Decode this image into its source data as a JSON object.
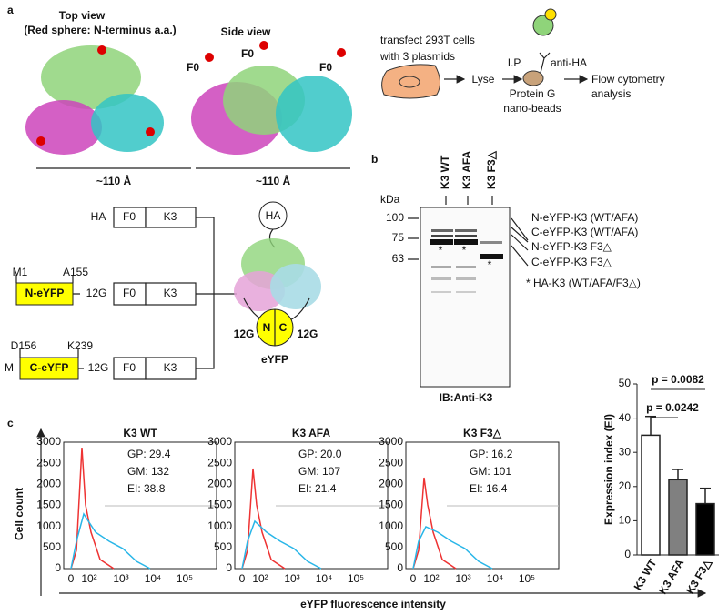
{
  "panel_a": {
    "label": "a",
    "top_view": {
      "title": "Top view",
      "note": "(Red sphere: N-terminus a.a.)",
      "scale": "~110 Å"
    },
    "side_view": {
      "title": "Side view",
      "f0_labels": [
        "F0",
        "F0",
        "F0"
      ],
      "scale": "~110 Å"
    },
    "workflow": {
      "transfect": [
        "transfect 293T cells",
        "with 3 plasmids"
      ],
      "lyse": "Lyse",
      "ip": "I.P.",
      "antibody": "anti-HA",
      "beads": [
        "Protein G",
        "nano-beads"
      ],
      "readout": [
        "Flow cytometry",
        "analysis"
      ]
    },
    "constructs": [
      {
        "tag": "HA",
        "domains": [
          "F0",
          "K3"
        ]
      },
      {
        "start": "M1",
        "end": "A155",
        "fp": "N-eYFP",
        "linker": "12G",
        "domains": [
          "F0",
          "K3"
        ]
      },
      {
        "prefix": "M",
        "start": "D156",
        "end": "K239",
        "fp": "C-eYFP",
        "linker": "12G",
        "domains": [
          "F0",
          "K3"
        ]
      }
    ],
    "model": {
      "tag": "HA",
      "linkers": [
        "12G",
        "12G"
      ],
      "halves": [
        "N",
        "C"
      ],
      "name": "eYFP"
    }
  },
  "panel_b": {
    "label": "b",
    "lanes": [
      "K3 WT",
      "K3 AFA",
      "K3 F3△"
    ],
    "unit": "kDa",
    "markers": [
      "100",
      "75",
      "63"
    ],
    "bands": [
      "N-eYFP-K3 (WT/AFA)",
      "C-eYFP-K3 (WT/AFA)",
      "N-eYFP-K3 F3△",
      "C-eYFP-K3 F3△"
    ],
    "footnote": "* HA-K3 (WT/AFA/F3△)",
    "asterisks": [
      "*",
      "*",
      "*"
    ],
    "blot": "IB:Anti-K3"
  },
  "panel_c": {
    "label": "c",
    "y_label": "Cell count",
    "x_label": "eYFP fluorescence intensity",
    "y_tick_labels": [
      "0",
      "500",
      "1000",
      "1500",
      "2000",
      "2500",
      "3000"
    ],
    "x_tick_labels": [
      "0",
      "10²",
      "10³",
      "10⁴",
      "10⁵"
    ],
    "histograms": [
      {
        "title": "K3 WT",
        "stats": [
          "GP: 29.4",
          "GM: 132",
          "EI: 38.8"
        ]
      },
      {
        "title": "K3 AFA",
        "stats": [
          "GP: 20.0",
          "GM: 107",
          "EI: 21.4"
        ]
      },
      {
        "title": "K3 F3△",
        "stats": [
          "GP: 16.2",
          "GM: 101",
          "EI: 16.4"
        ]
      }
    ]
  },
  "chart_data": {
    "type": "bar",
    "y_label": "Expression index (EI)",
    "categories": [
      "K3 WT",
      "K3 AFA",
      "K3 F3△"
    ],
    "values": [
      35,
      22,
      15
    ],
    "errors": [
      5.5,
      3,
      4.5
    ],
    "colors": [
      "#ffffff",
      "#808080",
      "#000000"
    ],
    "ylim": [
      0,
      50
    ],
    "yticks": [
      0,
      10,
      20,
      30,
      40,
      50
    ],
    "annotations": [
      "p = 0.0082",
      "p = 0.0242"
    ]
  }
}
